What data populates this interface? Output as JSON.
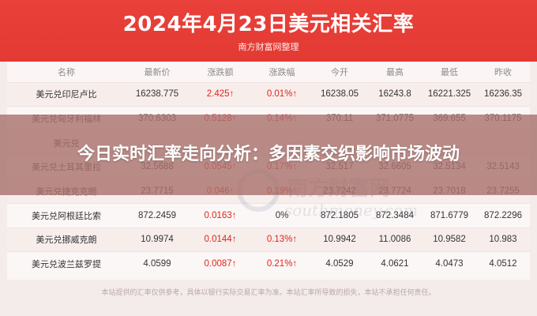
{
  "header": {
    "title": "2024年4月23日美元相关汇率",
    "source": "南方财富网整理"
  },
  "table": {
    "columns": [
      "名称",
      "最新价",
      "涨跌额",
      "涨跌幅",
      "今开",
      "最高",
      "最低",
      "昨收"
    ],
    "rows": [
      [
        "美元兑印尼卢比",
        "16238.775",
        "2.425↑",
        "0.01%↑",
        "16238.05",
        "16243.8",
        "16221.325",
        "16236.35"
      ],
      [
        "美元兑匈牙利福林",
        "370.6303",
        "0.5128↑",
        "0.14%↑",
        "370.11",
        "371.0775",
        "369.655",
        "370.1175"
      ],
      [
        "美元兑",
        "",
        "",
        "",
        "",
        "",
        "",
        ""
      ],
      [
        "美元兑土耳其里拉",
        "32.5688",
        "0.0545↑",
        "0.17%↑",
        "32.517",
        "32.6605",
        "32.5134",
        "32.5143"
      ],
      [
        "美元兑捷克克朗",
        "23.7715",
        "0.046↑",
        "0.19%↑",
        "23.7242",
        "23.7724",
        "23.7018",
        "23.7255"
      ],
      [
        "美元兑阿根廷比索",
        "872.2459",
        "0.0163↑",
        "0%",
        "872.1805",
        "872.3484",
        "871.6779",
        "872.2296"
      ],
      [
        "美元兑挪威克朗",
        "10.9974",
        "0.0144↑",
        "0.13%↑",
        "10.9942",
        "11.0086",
        "10.9582",
        "10.983"
      ],
      [
        "美元兑波兰兹罗提",
        "4.0599",
        "0.0087↑",
        "0.21%↑",
        "4.0529",
        "4.0621",
        "4.0473",
        "4.0512"
      ]
    ],
    "red_cols": [
      1,
      2,
      3
    ]
  },
  "banner": {
    "text": "今日实时汇率走向分析：多因素交织影响市场波动"
  },
  "watermark": {
    "text": "南方财富网",
    "sub": "southmoney.com"
  },
  "footer": {
    "text": "本站提供的汇率仅供参考，具体以银行实际交易汇率为准。本站汇率所导致的损失，本站不承担任何责任。"
  },
  "colors": {
    "header_bg": "#e33a33",
    "up_red": "#e2231a"
  }
}
